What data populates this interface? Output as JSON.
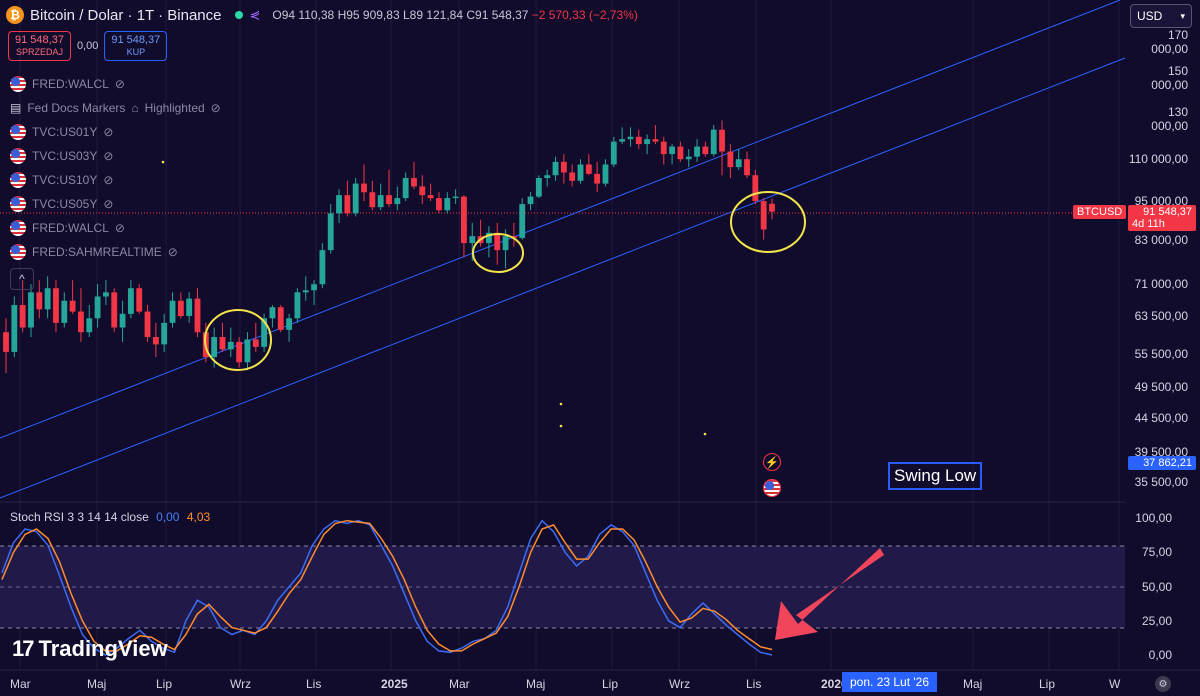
{
  "header": {
    "title": "Bitcoin / Dolar · 1T · Binance",
    "ohlc": {
      "o": "O94 110,38",
      "h": "H95 909,83",
      "l": "L89 121,84",
      "c": "C91 548,37",
      "chg": "−2 570,33 (−2,73%)"
    }
  },
  "trade": {
    "sell_price": "91 548,37",
    "sell_label": "SPRZEDAJ",
    "spread": "0,00",
    "buy_price": "91 548,37",
    "buy_label": "KUP"
  },
  "currency": "USD",
  "indicators": [
    {
      "label": "FRED:WALCL",
      "icon": "us-flag-icon"
    },
    {
      "label": "Fed Docs Markers",
      "extra": "Highlighted",
      "icon": "calendar-icon"
    },
    {
      "label": "TVC:US01Y",
      "icon": "us-flag-icon"
    },
    {
      "label": "TVC:US03Y",
      "icon": "us-flag-icon"
    },
    {
      "label": "TVC:US10Y",
      "icon": "us-flag-icon"
    },
    {
      "label": "TVC:US05Y",
      "icon": "us-flag-icon"
    },
    {
      "label": "FRED:WALCL",
      "icon": "us-flag-icon"
    },
    {
      "label": "FRED:SAHMREALTIME",
      "icon": "us-flag-icon"
    }
  ],
  "price_axis": [
    "170 000,00",
    "150 000,00",
    "130 000,00",
    "110 000,00",
    "95 000,00",
    "83 000,00",
    "71 000,00",
    "63 500,00",
    "55 500,00",
    "49 500,00",
    "44 500,00",
    "39 500,00",
    "35 500,00"
  ],
  "price_tags": {
    "symbol": "BTCUSD",
    "last": "91 548,37",
    "countdown": "4d 11h",
    "secondary": "37 862,21"
  },
  "rsi": {
    "name": "Stoch RSI",
    "params": "3 3 14 14 close",
    "k": "0,00",
    "d": "4,03",
    "axis": [
      "100,00",
      "75,00",
      "50,00",
      "25,00",
      "0,00"
    ]
  },
  "annotation": "Swing Low",
  "time_axis": [
    "Mar",
    "Maj",
    "Lip",
    "Wrz",
    "Lis",
    "2025",
    "Mar",
    "Maj",
    "Lip",
    "Wrz",
    "Lis",
    "2026",
    "Maj",
    "Lip",
    "W"
  ],
  "crosshair_date": "pon. 23 Lut '26",
  "brand": "TradingView",
  "colors": {
    "bg": "#120c2c",
    "up": "#26a69a",
    "down": "#f23645",
    "trend": "#2962ff",
    "highlight": "#f2e44a"
  },
  "chart_data": {
    "type": "candlestick",
    "title": "",
    "xlabel": "",
    "ylabel": "",
    "ylim": [
      33000,
      180000
    ],
    "y_scale": "log",
    "start": "2024-03",
    "candles_ohlc": [
      [
        60000,
        63000,
        52000,
        56000
      ],
      [
        56000,
        68000,
        55000,
        66000
      ],
      [
        66000,
        72000,
        60000,
        61000
      ],
      [
        61000,
        71000,
        59000,
        69000
      ],
      [
        69000,
        72000,
        63000,
        65000
      ],
      [
        65000,
        73000,
        63000,
        70000
      ],
      [
        70000,
        72000,
        60000,
        62000
      ],
      [
        62000,
        69000,
        61000,
        67000
      ],
      [
        67000,
        72000,
        64000,
        64500
      ],
      [
        64500,
        70000,
        58000,
        60000
      ],
      [
        60000,
        66000,
        59000,
        63000
      ],
      [
        63000,
        71000,
        61000,
        68000
      ],
      [
        68000,
        72000,
        66000,
        69000
      ],
      [
        69000,
        70000,
        60000,
        61000
      ],
      [
        61000,
        67000,
        58000,
        64000
      ],
      [
        64000,
        72000,
        63000,
        70000
      ],
      [
        70000,
        71000,
        64000,
        64500
      ],
      [
        64500,
        66000,
        58000,
        59000
      ],
      [
        59000,
        62000,
        55000,
        57500
      ],
      [
        57500,
        64000,
        56000,
        62000
      ],
      [
        62000,
        69000,
        61000,
        67000
      ],
      [
        67000,
        69000,
        63000,
        63500
      ],
      [
        63500,
        69000,
        62000,
        67500
      ],
      [
        67500,
        70000,
        59000,
        60000
      ],
      [
        60000,
        62000,
        54000,
        55000
      ],
      [
        55000,
        61000,
        53000,
        59000
      ],
      [
        59000,
        62000,
        56000,
        56500
      ],
      [
        56500,
        61000,
        55000,
        58000
      ],
      [
        58000,
        59000,
        53000,
        54000
      ],
      [
        54000,
        60000,
        52500,
        58500
      ],
      [
        58500,
        62000,
        56000,
        57000
      ],
      [
        57000,
        64000,
        56000,
        63000
      ],
      [
        63000,
        66000,
        61000,
        65500
      ],
      [
        65500,
        66000,
        60000,
        60500
      ],
      [
        60500,
        64000,
        58000,
        63000
      ],
      [
        63000,
        70000,
        62000,
        69000
      ],
      [
        69000,
        73000,
        67000,
        69500
      ],
      [
        69500,
        72000,
        66000,
        71000
      ],
      [
        71000,
        82000,
        70000,
        80000
      ],
      [
        80000,
        94000,
        79000,
        91000
      ],
      [
        91000,
        99000,
        88000,
        97000
      ],
      [
        97000,
        102000,
        90000,
        91000
      ],
      [
        91000,
        103000,
        90000,
        101000
      ],
      [
        101000,
        108000,
        95000,
        98000
      ],
      [
        98000,
        102000,
        92000,
        93000
      ],
      [
        93000,
        101000,
        92000,
        97000
      ],
      [
        97000,
        106000,
        93000,
        94000
      ],
      [
        94000,
        100000,
        92000,
        96000
      ],
      [
        96000,
        105000,
        95000,
        103000
      ],
      [
        103000,
        109000,
        99000,
        100000
      ],
      [
        100000,
        104000,
        94000,
        97000
      ],
      [
        97000,
        101000,
        95000,
        96000
      ],
      [
        96000,
        98000,
        91000,
        92000
      ],
      [
        92000,
        98000,
        91000,
        96000
      ],
      [
        96000,
        99000,
        94000,
        96500
      ],
      [
        96500,
        97000,
        78000,
        82000
      ],
      [
        82000,
        88000,
        77000,
        84000
      ],
      [
        84000,
        89000,
        81000,
        82000
      ],
      [
        82000,
        87000,
        78000,
        85000
      ],
      [
        85000,
        88000,
        76000,
        80000
      ],
      [
        80000,
        86000,
        75000,
        84000
      ],
      [
        84000,
        88000,
        81000,
        83500
      ],
      [
        83500,
        96000,
        83000,
        94000
      ],
      [
        94000,
        98000,
        92000,
        96500
      ],
      [
        96500,
        104000,
        96000,
        103000
      ],
      [
        103000,
        106000,
        100000,
        104000
      ],
      [
        104000,
        111000,
        102000,
        109000
      ],
      [
        109000,
        112000,
        101000,
        105000
      ],
      [
        105000,
        108000,
        100000,
        102000
      ],
      [
        102000,
        110000,
        101000,
        108000
      ],
      [
        108000,
        112000,
        104000,
        104500
      ],
      [
        104500,
        109000,
        98000,
        101000
      ],
      [
        101000,
        110000,
        100000,
        108000
      ],
      [
        108000,
        119000,
        107000,
        117000
      ],
      [
        117000,
        123000,
        116000,
        118000
      ],
      [
        118000,
        123000,
        115000,
        119000
      ],
      [
        119000,
        122000,
        114000,
        116000
      ],
      [
        116000,
        120000,
        112000,
        118000
      ],
      [
        118000,
        124000,
        116000,
        117000
      ],
      [
        117000,
        119000,
        108000,
        112000
      ],
      [
        112000,
        116000,
        108000,
        115000
      ],
      [
        115000,
        117000,
        109000,
        110000
      ],
      [
        110000,
        114000,
        107000,
        111000
      ],
      [
        111000,
        118000,
        109000,
        115000
      ],
      [
        115000,
        117000,
        111000,
        112000
      ],
      [
        112000,
        124000,
        111000,
        122000
      ],
      [
        122000,
        126000,
        104000,
        113000
      ],
      [
        113000,
        116000,
        103000,
        107000
      ],
      [
        107000,
        114000,
        106000,
        110000
      ],
      [
        110000,
        113000,
        103000,
        104000
      ],
      [
        104000,
        106000,
        94000,
        95000
      ],
      [
        95000,
        96000,
        83000,
        86000
      ],
      [
        94110.38,
        95909.83,
        89121.84,
        91548.37
      ]
    ],
    "stoch_k": [
      60,
      82,
      92,
      90,
      80,
      58,
      35,
      15,
      5,
      0,
      5,
      12,
      18,
      10,
      5,
      2,
      25,
      40,
      35,
      20,
      15,
      18,
      15,
      25,
      40,
      50,
      60,
      80,
      92,
      98,
      96,
      98,
      95,
      80,
      65,
      45,
      25,
      10,
      3,
      2,
      5,
      10,
      12,
      18,
      35,
      60,
      85,
      98,
      90,
      75,
      65,
      72,
      88,
      95,
      90,
      80,
      60,
      40,
      25,
      20,
      30,
      38,
      30,
      22,
      15,
      8,
      2,
      0
    ],
    "stoch_d": [
      55,
      75,
      88,
      92,
      85,
      68,
      45,
      25,
      10,
      3,
      3,
      8,
      14,
      13,
      8,
      4,
      15,
      30,
      37,
      28,
      20,
      18,
      16,
      20,
      32,
      45,
      55,
      72,
      88,
      96,
      98,
      97,
      96,
      85,
      72,
      55,
      35,
      18,
      8,
      3,
      3,
      8,
      12,
      16,
      28,
      50,
      75,
      92,
      95,
      82,
      70,
      70,
      82,
      92,
      92,
      84,
      68,
      50,
      35,
      24,
      27,
      34,
      32,
      26,
      18,
      12,
      6,
      4.03
    ]
  }
}
